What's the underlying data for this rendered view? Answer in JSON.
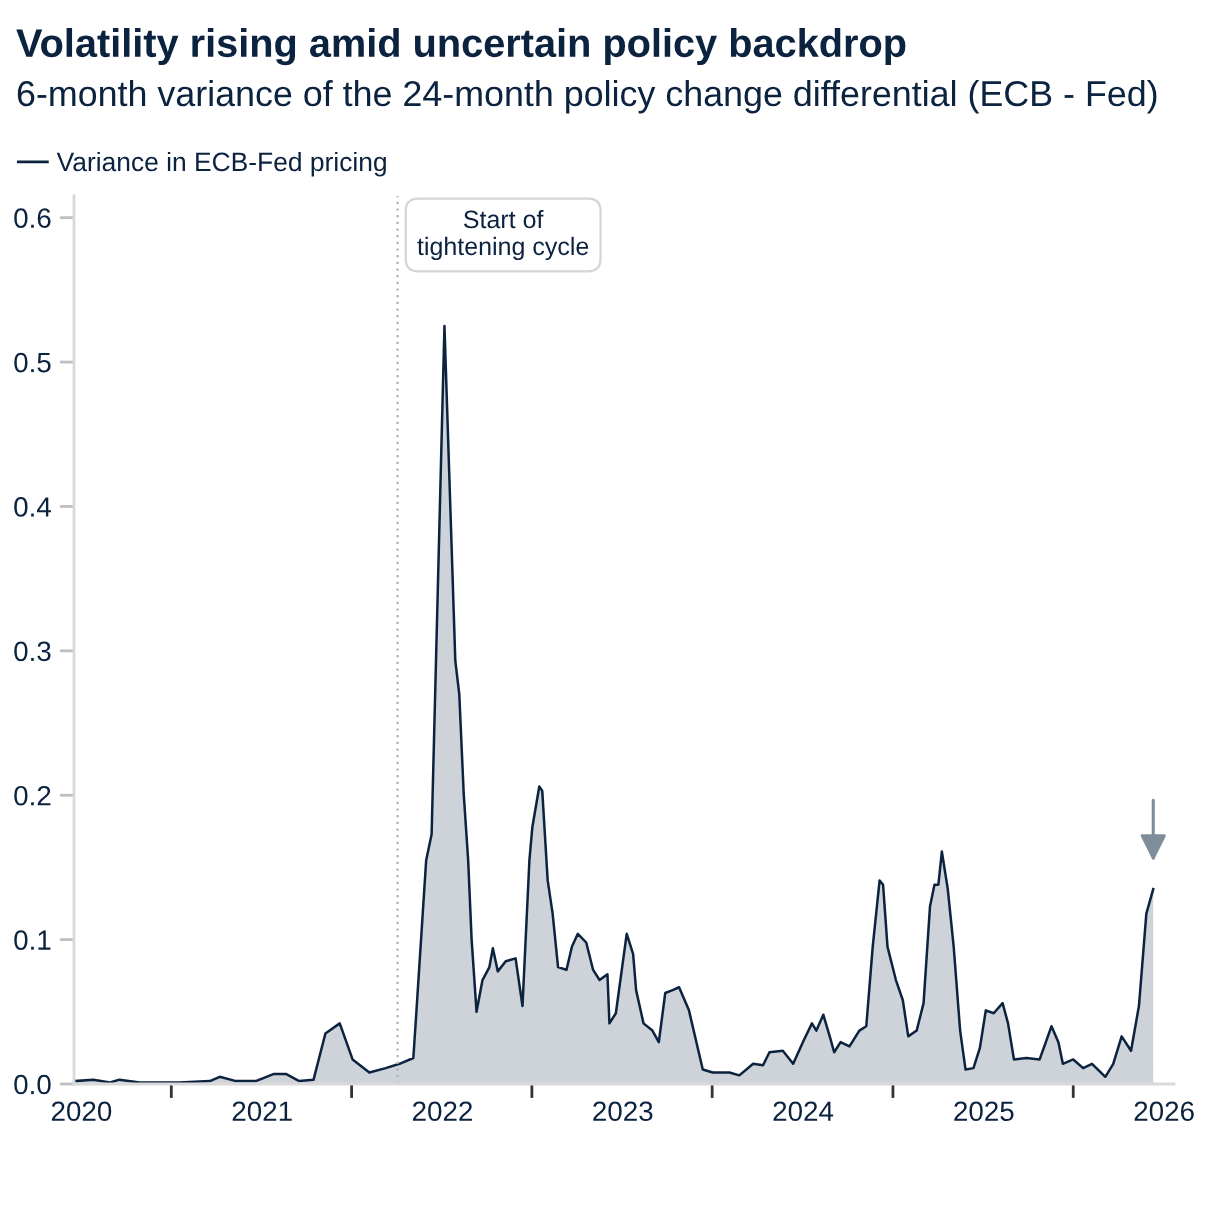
{
  "chart_data": {
    "type": "area",
    "title": "Volatility rising amid uncertain policy backdrop",
    "subtitle": "6-month variance of the 24-month policy change differential (ECB - Fed)",
    "x": [
      "2019-12-18",
      "2020-01-25",
      "2020-02-28",
      "2020-03-18",
      "2020-04-28",
      "2020-07-17",
      "2020-09-17",
      "2020-10-07",
      "2020-11-09",
      "2020-12-19",
      "2021-01-25",
      "2021-02-18",
      "2021-03-17",
      "2021-04-15",
      "2021-05-09",
      "2021-06-07",
      "2021-07-03",
      "2021-08-06",
      "2021-09-08",
      "2021-10-06",
      "2021-11-03",
      "2021-11-09",
      "2021-11-29",
      "2021-12-10",
      "2022-01-05",
      "2022-01-27",
      "2022-02-04",
      "2022-02-13",
      "2022-02-22",
      "2022-03-01",
      "2022-03-11",
      "2022-03-23",
      "2022-04-06",
      "2022-04-13",
      "2022-04-23",
      "2022-05-09",
      "2022-05-29",
      "2022-06-12",
      "2022-06-26",
      "2022-07-02",
      "2022-07-16",
      "2022-07-22",
      "2022-08-02",
      "2022-08-12",
      "2022-08-23",
      "2022-09-09",
      "2022-09-20",
      "2022-10-02",
      "2022-10-19",
      "2022-11-02",
      "2022-11-15",
      "2022-12-01",
      "2022-12-05",
      "2022-12-18",
      "2023-01-09",
      "2023-01-22",
      "2023-01-28",
      "2023-02-12",
      "2023-03-02",
      "2023-03-15",
      "2023-03-28",
      "2023-04-12",
      "2023-04-25",
      "2023-05-15",
      "2023-06-12",
      "2023-07-02",
      "2023-08-05",
      "2023-08-25",
      "2023-09-22",
      "2023-10-12",
      "2023-10-25",
      "2023-11-21",
      "2023-12-12",
      "2024-01-02",
      "2024-01-19",
      "2024-01-28",
      "2024-02-11",
      "2024-02-24",
      "2024-03-04",
      "2024-03-17",
      "2024-04-04",
      "2024-04-24",
      "2024-05-08",
      "2024-05-21",
      "2024-06-04",
      "2024-06-11",
      "2024-06-20",
      "2024-07-07",
      "2024-07-21",
      "2024-08-01",
      "2024-08-18",
      "2024-09-01",
      "2024-09-14",
      "2024-09-23",
      "2024-10-01",
      "2024-10-08",
      "2024-10-20",
      "2024-11-01",
      "2024-11-14",
      "2024-11-25",
      "2024-12-11",
      "2024-12-24",
      "2025-01-05",
      "2025-01-21",
      "2025-02-08",
      "2025-02-19",
      "2025-03-03",
      "2025-03-28",
      "2025-04-24",
      "2025-05-18",
      "2025-06-01",
      "2025-06-10",
      "2025-07-01",
      "2025-07-21",
      "2025-08-08",
      "2025-09-04",
      "2025-09-20",
      "2025-10-07",
      "2025-10-26",
      "2025-11-11",
      "2025-11-26",
      "2025-12-10"
    ],
    "series": [
      {
        "name": "Variance in ECB-Fed pricing",
        "color": "#0c2340",
        "values": [
          0.002,
          0.003,
          0.001,
          0.003,
          0.001,
          0.001,
          0.002,
          0.005,
          0.002,
          0.002,
          0.007,
          0.007,
          0.002,
          0.003,
          0.035,
          0.042,
          0.017,
          0.008,
          0.011,
          0.014,
          0.018,
          0.049,
          0.155,
          0.173,
          0.525,
          0.293,
          0.27,
          0.201,
          0.155,
          0.1,
          0.05,
          0.072,
          0.081,
          0.094,
          0.078,
          0.085,
          0.087,
          0.054,
          0.155,
          0.178,
          0.206,
          0.203,
          0.141,
          0.118,
          0.081,
          0.079,
          0.095,
          0.104,
          0.098,
          0.079,
          0.072,
          0.076,
          0.042,
          0.049,
          0.104,
          0.09,
          0.065,
          0.042,
          0.037,
          0.029,
          0.063,
          0.065,
          0.067,
          0.051,
          0.01,
          0.008,
          0.008,
          0.006,
          0.014,
          0.013,
          0.022,
          0.023,
          0.014,
          0.03,
          0.042,
          0.037,
          0.048,
          0.033,
          0.022,
          0.029,
          0.026,
          0.037,
          0.04,
          0.095,
          0.141,
          0.138,
          0.095,
          0.072,
          0.058,
          0.033,
          0.037,
          0.056,
          0.123,
          0.138,
          0.138,
          0.161,
          0.135,
          0.095,
          0.037,
          0.01,
          0.011,
          0.025,
          0.051,
          0.049,
          0.056,
          0.042,
          0.017,
          0.018,
          0.017,
          0.04,
          0.029,
          0.014,
          0.017,
          0.011,
          0.014,
          0.005,
          0.014,
          0.033,
          0.023,
          0.054,
          0.118,
          0.135
        ]
      }
    ],
    "xlim": [
      "2019-12-17",
      "2026-01-21"
    ],
    "xticks": [
      {
        "value": "2020-01-01",
        "label": "2020"
      },
      {
        "value": "2020-07-01",
        "label": null
      },
      {
        "value": "2021-01-01",
        "label": "2021"
      },
      {
        "value": "2021-07-01",
        "label": null
      },
      {
        "value": "2022-01-01",
        "label": "2022"
      },
      {
        "value": "2022-07-01",
        "label": null
      },
      {
        "value": "2023-01-01",
        "label": "2023"
      },
      {
        "value": "2023-07-01",
        "label": null
      },
      {
        "value": "2024-01-01",
        "label": "2024"
      },
      {
        "value": "2024-07-01",
        "label": null
      },
      {
        "value": "2025-01-01",
        "label": "2025"
      },
      {
        "value": "2025-07-01",
        "label": null
      },
      {
        "value": "2026-01-01",
        "label": "2026"
      }
    ],
    "ylim": [
      0,
      0.615
    ],
    "yticks": [
      {
        "value": 0,
        "label": "0.0"
      },
      0.1,
      0.2,
      0.3,
      0.4,
      0.5,
      0.6
    ],
    "ref_lines": [
      {
        "axis": "x",
        "value": "2021-10-02",
        "label": "Start of\ntightening cycle",
        "color": "#b3b3b3",
        "line_style": "dotted"
      }
    ],
    "legend": "top left"
  }
}
